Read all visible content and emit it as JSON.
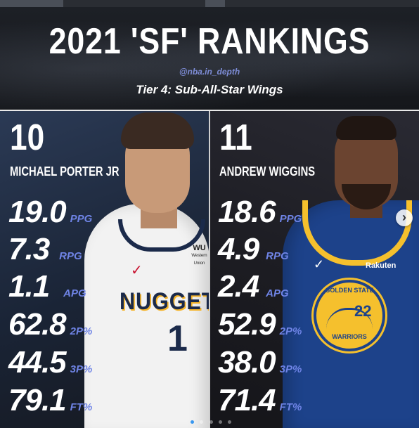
{
  "header": {
    "title": "2021 'SF' RANKINGS",
    "handle": "@nba.in_depth",
    "tier": "Tier 4: Sub-All-Star Wings"
  },
  "players": [
    {
      "rank": "10",
      "name": "MICHAEL PORTER JR",
      "jersey_team": "NUGGETS",
      "jersey_number": "1",
      "jersey_sponsor": "WU",
      "jersey_sponsor_small": "Western Union",
      "stats": [
        {
          "value": "19.0",
          "unit": "PPG"
        },
        {
          "value": "7.3",
          "unit": "RPG"
        },
        {
          "value": "1.1",
          "unit": "APG"
        },
        {
          "value": "62.8",
          "unit": "2P%"
        },
        {
          "value": "44.5",
          "unit": "3P%"
        },
        {
          "value": "79.1",
          "unit": "FT%"
        }
      ]
    },
    {
      "rank": "11",
      "name": "ANDREW WIGGINS",
      "jersey_sponsor": "Rakuten",
      "jersey_logo_top": "GOLDEN STATE",
      "jersey_logo_bottom": "WARRIORS",
      "jersey_number": "22",
      "stats": [
        {
          "value": "18.6",
          "unit": "PPG"
        },
        {
          "value": "4.9",
          "unit": "RPG"
        },
        {
          "value": "2.4",
          "unit": "APG"
        },
        {
          "value": "52.9",
          "unit": "2P%"
        },
        {
          "value": "38.0",
          "unit": "3P%"
        },
        {
          "value": "71.4",
          "unit": "FT%"
        }
      ]
    }
  ],
  "carousel": {
    "next_icon": "›",
    "active_slide": 1,
    "slide_count": 5
  },
  "colors": {
    "accent_unit": "#6f84e6",
    "handle": "#7d8cd6",
    "nuggets_navy": "#1b2a4a",
    "warriors_blue": "#1d428a",
    "warriors_gold": "#f5c02d"
  }
}
